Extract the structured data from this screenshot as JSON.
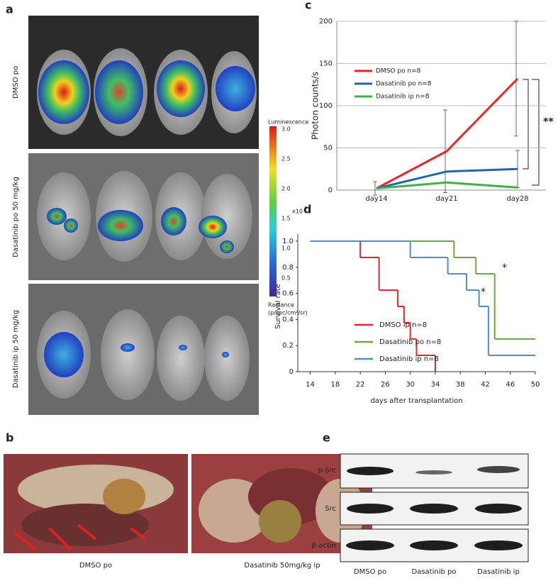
{
  "figure": {
    "panels": [
      "a",
      "b",
      "c",
      "d",
      "e"
    ],
    "a": {
      "row_labels": [
        "DMSO po",
        "Dasatinib po 50 mg/kg",
        "Dasatinib ip 50 mg/kg"
      ],
      "colorbar": {
        "title": "Luminescence",
        "tick_labels": [
          "3.0",
          "2.5",
          "2.0",
          "1.5",
          "1.0",
          "0.5"
        ],
        "multiplier": "x10",
        "exponent": "7",
        "label_line1": "Radiance",
        "label_line2": "(p/sec/cm²/sr)"
      }
    },
    "b": {
      "captions": [
        "DMSO po",
        "Dasatinib 50mg/kg ip"
      ]
    },
    "e": {
      "row_labels": [
        "p-Src",
        "Src",
        "β-actin"
      ],
      "column_labels": [
        "DMSO po",
        "Dasatinib po",
        "Dasatinib ip"
      ]
    }
  },
  "chart_data": [
    {
      "type": "line",
      "ylabel": "Photon counts/s",
      "categories": [
        "day14",
        "day21",
        "day28"
      ],
      "ylim": [
        0,
        200
      ],
      "yticks": [
        0,
        50,
        100,
        150,
        200
      ],
      "grid": true,
      "legend": "upper left",
      "series": [
        {
          "name": "DMSO po n=8",
          "color": "#e8262a",
          "values": [
            2,
            46,
            132
          ],
          "errors": [
            8,
            49,
            68
          ]
        },
        {
          "name": "Dasatinib po n=8",
          "color": "#2166ac",
          "values": [
            2,
            22,
            25
          ],
          "errors": [
            null,
            null,
            22
          ]
        },
        {
          "name": "Dasatinib ip n=8",
          "color": "#3db24a",
          "values": [
            2,
            9,
            3
          ],
          "errors": [
            null,
            null,
            null
          ]
        }
      ],
      "annotations": [
        "**"
      ]
    },
    {
      "type": "step",
      "xlabel": "days after transplantation",
      "ylabel": "Survival rate",
      "xlim": [
        12,
        50
      ],
      "xticks": [
        14,
        18,
        22,
        26,
        30,
        34,
        38,
        42,
        46,
        50
      ],
      "ylim": [
        0,
        1
      ],
      "yticks": [
        0,
        0.2,
        0.4,
        0.6,
        0.8,
        {
          "value": 1,
          "label": "1.0"
        }
      ],
      "legend": "lower left",
      "series": [
        {
          "name": "DMSO ip  n=8",
          "color": "#e8262a",
          "x": [
            14,
            22,
            25,
            28,
            29,
            30,
            31,
            34
          ],
          "values": [
            1,
            0.875,
            0.625,
            0.5,
            0.375,
            0.25,
            0.125,
            0
          ]
        },
        {
          "name": "Dasatinib po n=8",
          "color": "#6aab3e",
          "x": [
            14,
            37,
            40.5,
            43.5,
            50
          ],
          "values": [
            1,
            0.875,
            0.75,
            0.25,
            0.25
          ]
        },
        {
          "name": "Dasatinib ip n=8",
          "color": "#4a90d0",
          "x": [
            14,
            30,
            36,
            39,
            41,
            42.5,
            50
          ],
          "values": [
            1,
            0.875,
            0.75,
            0.625,
            0.5,
            0.125,
            0.125
          ]
        }
      ],
      "annotations": [
        "*",
        "*"
      ]
    }
  ]
}
